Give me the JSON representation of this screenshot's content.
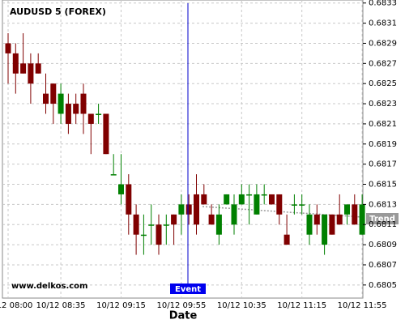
{
  "chart_data": {
    "type": "candlestick",
    "title": "AUDUSD 5 (FOREX)",
    "watermark": "www.delkos.com",
    "x_label": "Date",
    "event_label": "Event",
    "trend_label": "Trend",
    "categories": [
      "10/12 08:00",
      null,
      null,
      null,
      null,
      null,
      null,
      "10/12 08:35",
      null,
      null,
      null,
      null,
      null,
      null,
      null,
      "10/12 09:15",
      null,
      null,
      null,
      null,
      null,
      null,
      null,
      "10/12 09:55",
      null,
      null,
      null,
      null,
      null,
      null,
      null,
      "10/12 10:35",
      null,
      null,
      null,
      null,
      null,
      null,
      null,
      "10/12 11:15",
      null,
      null,
      null,
      null,
      null,
      null,
      null,
      "10/12 11:55"
    ],
    "open": [
      0.6829,
      0.6828,
      0.6827,
      0.6827,
      0.6827,
      0.6824,
      0.6825,
      0.6822,
      0.6823,
      0.6823,
      0.6824,
      0.6822,
      0.6822,
      0.6822,
      0.6816,
      0.6814,
      0.6815,
      0.6812,
      0.681,
      0.6811,
      0.6811,
      0.6811,
      0.6812,
      0.6812,
      0.6813,
      0.6814,
      0.6814,
      0.6812,
      0.681,
      0.6813,
      0.6811,
      0.6813,
      0.6814,
      0.6812,
      0.6814,
      0.6814,
      0.6814,
      0.681,
      0.6813,
      0.6813,
      0.681,
      0.6812,
      0.6809,
      0.6812,
      0.6812,
      0.6812,
      0.6813,
      0.681
    ],
    "high": [
      0.683,
      0.6829,
      0.683,
      0.6828,
      0.6828,
      0.6826,
      0.6825,
      0.6825,
      0.6824,
      0.6824,
      0.6825,
      0.6822,
      0.6823,
      0.6822,
      0.6818,
      0.6818,
      0.6816,
      0.6813,
      0.6812,
      0.6813,
      0.6812,
      0.6812,
      0.6812,
      0.6814,
      0.6814,
      0.6816,
      0.6815,
      0.6813,
      0.6813,
      0.6814,
      0.6814,
      0.6815,
      0.6815,
      0.6815,
      0.6815,
      0.6814,
      0.6814,
      0.6812,
      0.6814,
      0.6814,
      0.6813,
      0.6813,
      0.6812,
      0.6812,
      0.6814,
      0.6813,
      0.6814,
      0.6814
    ],
    "low": [
      0.6825,
      0.6824,
      0.6826,
      0.6823,
      0.6826,
      0.6822,
      0.6821,
      0.6821,
      0.682,
      0.6821,
      0.682,
      0.6818,
      0.6821,
      0.6818,
      0.6816,
      0.6813,
      0.681,
      0.6808,
      0.6808,
      0.6809,
      0.6808,
      0.6809,
      0.6809,
      0.681,
      0.6811,
      0.681,
      0.6813,
      0.6811,
      0.6809,
      0.6813,
      0.681,
      0.6813,
      0.6811,
      0.6812,
      0.6813,
      0.6813,
      0.6811,
      0.6809,
      0.6812,
      0.6812,
      0.6809,
      0.681,
      0.6808,
      0.681,
      0.6811,
      0.6811,
      0.6811,
      0.681
    ],
    "close": [
      0.6828,
      0.6826,
      0.6826,
      0.6825,
      0.6826,
      0.6823,
      0.6823,
      0.6824,
      0.6821,
      0.6822,
      0.6822,
      0.6821,
      0.6822,
      0.6818,
      0.6816,
      0.6815,
      0.6812,
      0.681,
      0.681,
      0.6811,
      0.6809,
      0.6811,
      0.6811,
      0.6813,
      0.6812,
      0.6811,
      0.6813,
      0.6811,
      0.6812,
      0.6814,
      0.6813,
      0.6814,
      0.6814,
      0.6814,
      0.6814,
      0.6813,
      0.6812,
      0.6809,
      0.6813,
      0.6813,
      0.6812,
      0.6811,
      0.6812,
      0.681,
      0.6811,
      0.6813,
      0.6811,
      0.6813
    ],
    "up_color": "#008000",
    "down_color": "#800000",
    "ylim": [
      0.68037,
      0.68333
    ],
    "yticks": [
      0.6805,
      0.6807,
      0.6809,
      0.6811,
      0.6813,
      0.6815,
      0.6817,
      0.6819,
      0.6821,
      0.6823,
      0.6825,
      0.6827,
      0.6829,
      0.6831,
      0.6833
    ],
    "grid": true
  }
}
